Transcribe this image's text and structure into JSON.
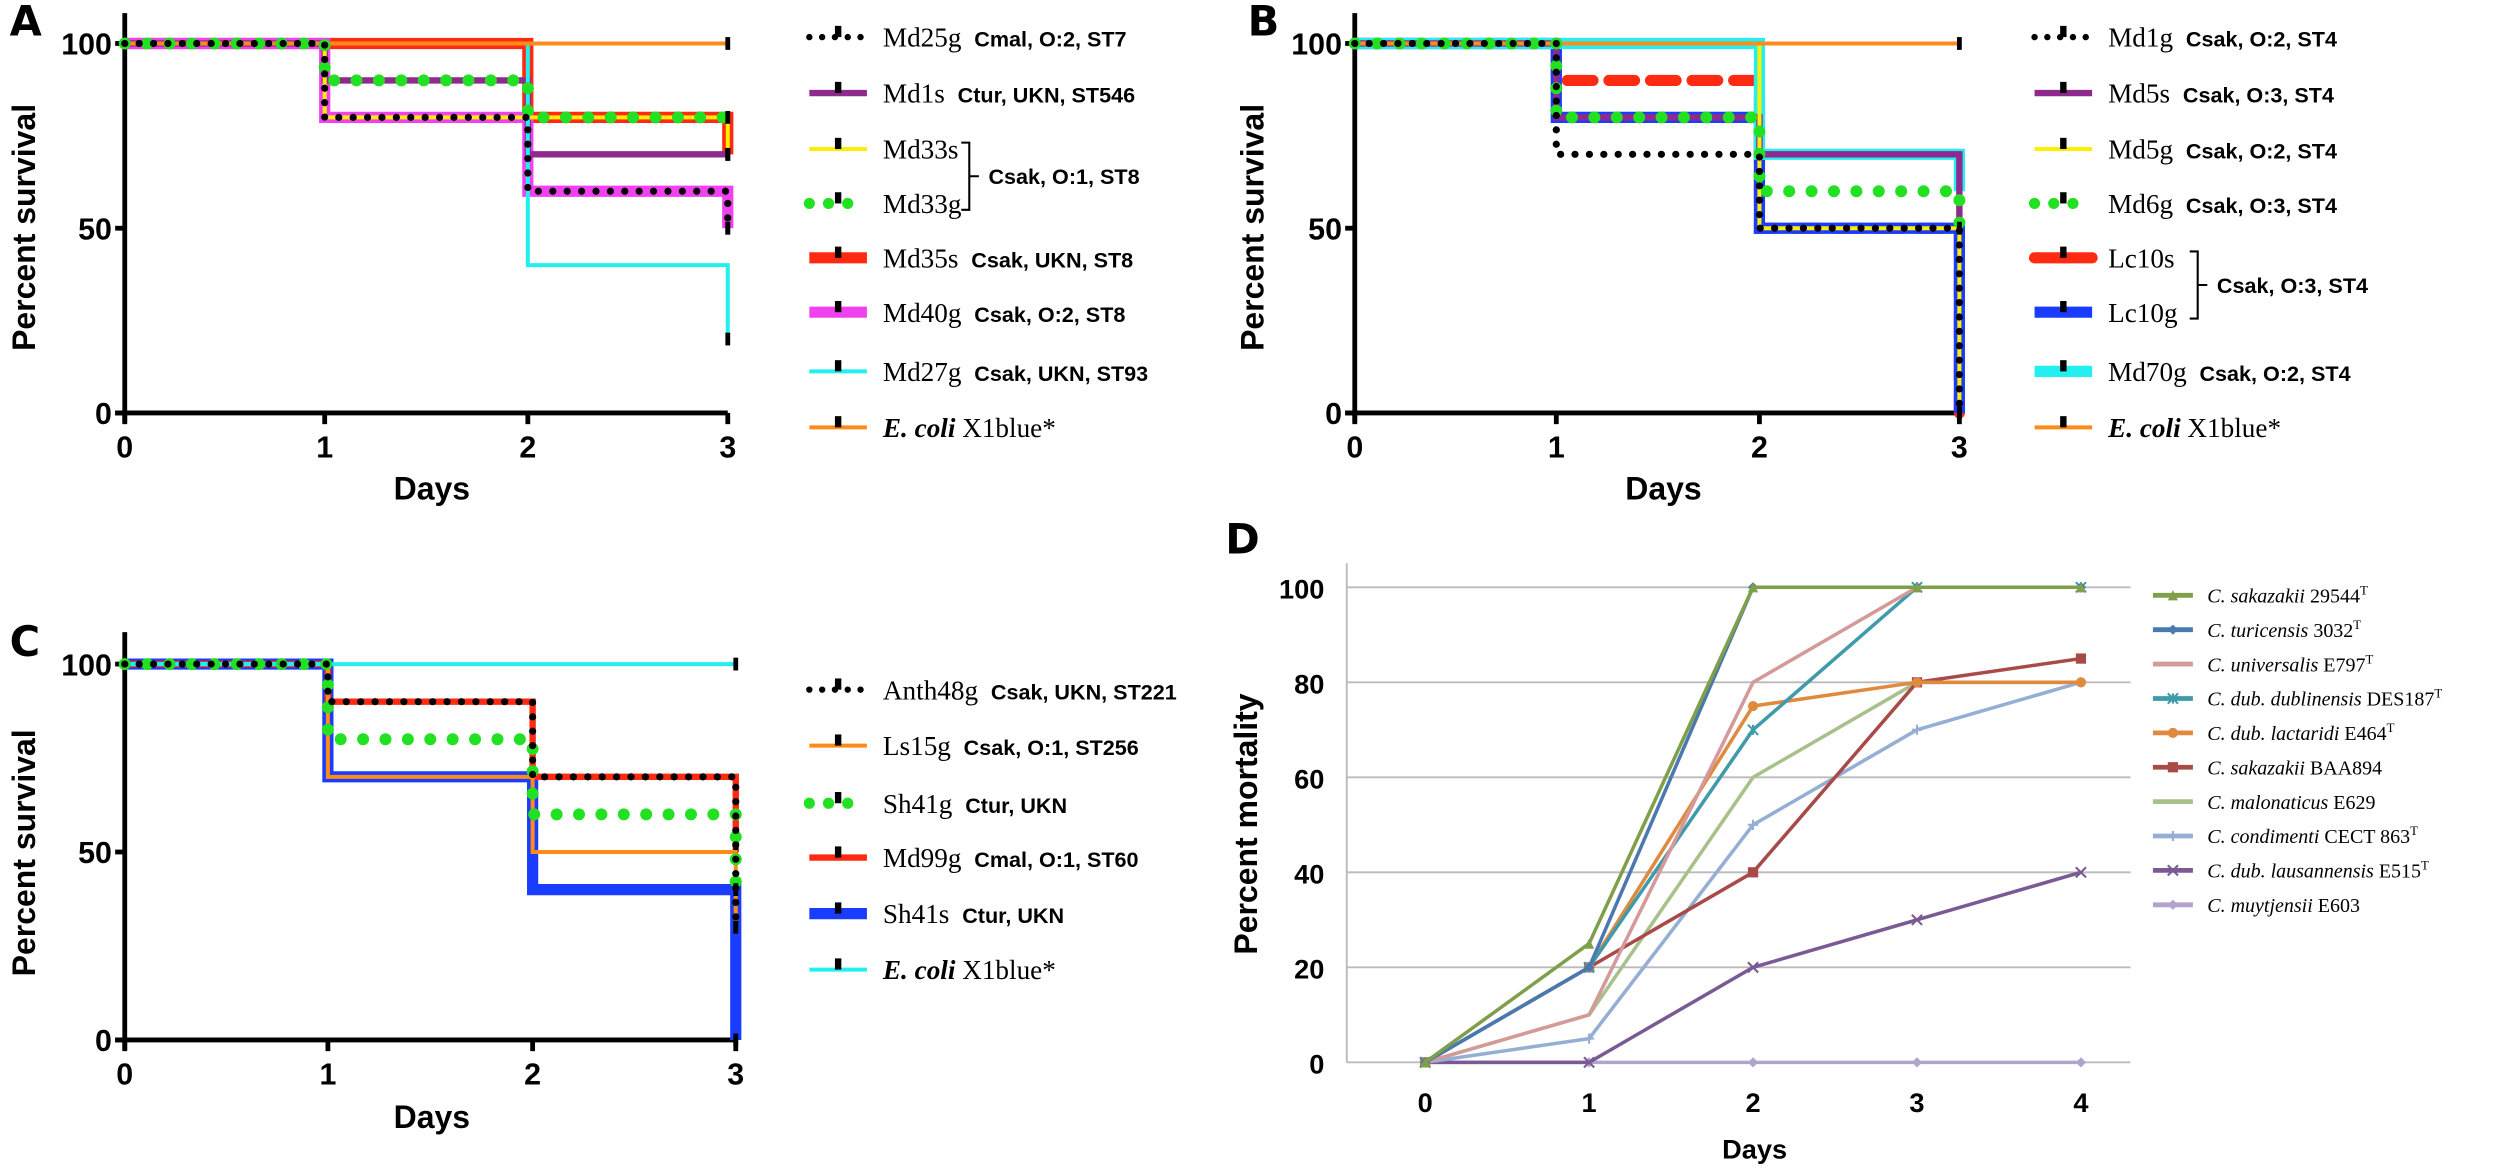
{
  "chart_data": [
    {
      "panel": "A",
      "type": "line",
      "subtype": "kaplan-meier step",
      "xlabel": "Days",
      "ylabel": "Percent survival",
      "x": [
        0,
        1,
        2,
        3
      ],
      "xticks": [
        "0",
        "1",
        "2",
        "3"
      ],
      "yticks": [
        "0",
        "50",
        "100"
      ],
      "xlim": [
        0,
        3
      ],
      "ylim": [
        0,
        100
      ],
      "legend_position": "right",
      "series": [
        {
          "name": "Md25g",
          "desc": "Cmal, O:2, ST7",
          "values": [
            100,
            80,
            60,
            50
          ],
          "color": "#000000",
          "line_style": "dotted",
          "weight": "thin"
        },
        {
          "name": "Md1s",
          "desc": "Ctur, UKN, ST546",
          "values": [
            100,
            90,
            70,
            70
          ],
          "color": "#8e2a8e",
          "line_style": "solid",
          "weight": "medium"
        },
        {
          "name": "Md33s",
          "desc": "",
          "values": [
            100,
            80,
            80,
            70
          ],
          "color": "#ffee00",
          "line_style": "solid",
          "weight": "thin"
        },
        {
          "name": "Md33g",
          "desc": "",
          "values": [
            100,
            90,
            80,
            80
          ],
          "color": "#22e022",
          "line_style": "dotted",
          "weight": "medium"
        },
        {
          "name": "Md35s",
          "desc": "Csak, UKN, ST8",
          "values": [
            100,
            100,
            80,
            70
          ],
          "color": "#ff2a12",
          "line_style": "solid",
          "weight": "thick"
        },
        {
          "name": "Md40g",
          "desc": "Csak, O:2, ST8",
          "values": [
            100,
            80,
            60,
            50
          ],
          "color": "#f040f0",
          "line_style": "solid",
          "weight": "thick"
        },
        {
          "name": "Md27g",
          "desc": "Csak, UKN, ST93",
          "values": [
            100,
            100,
            40,
            20
          ],
          "color": "#22f0f0",
          "line_style": "solid",
          "weight": "thin"
        },
        {
          "name_italic": "E. coli",
          "name": " X1blue*",
          "desc": "",
          "values": [
            100,
            100,
            100,
            100
          ],
          "color": "#ff8c1a",
          "line_style": "solid",
          "weight": "thin"
        }
      ],
      "group_label": "Csak, O:1, ST8"
    },
    {
      "panel": "B",
      "type": "line",
      "subtype": "kaplan-meier step",
      "xlabel": "Days",
      "ylabel": "Percent survival",
      "x": [
        0,
        1,
        2,
        3
      ],
      "xticks": [
        "0",
        "1",
        "2",
        "3"
      ],
      "yticks": [
        "0",
        "50",
        "100"
      ],
      "xlim": [
        0,
        3
      ],
      "ylim": [
        0,
        100
      ],
      "legend_position": "right",
      "series": [
        {
          "name": "Md1g",
          "desc": "Csak, O:2, ST4",
          "values": [
            100,
            70,
            50,
            0
          ],
          "color": "#000000",
          "line_style": "dotted",
          "weight": "thin"
        },
        {
          "name": "Md5s",
          "desc": "Csak, O:3, ST4",
          "values": [
            100,
            80,
            70,
            50
          ],
          "color": "#8e2a8e",
          "line_style": "solid",
          "weight": "medium"
        },
        {
          "name": "Md5g",
          "desc": "Csak, O:2, ST4",
          "values": [
            100,
            100,
            50,
            0
          ],
          "color": "#ffee00",
          "line_style": "solid",
          "weight": "thin"
        },
        {
          "name": "Md6g",
          "desc": "Csak, O:3, ST4",
          "values": [
            100,
            80,
            60,
            50
          ],
          "color": "#22e022",
          "line_style": "dotted",
          "weight": "medium"
        },
        {
          "name": "Lc10s",
          "desc": "",
          "values": [
            100,
            90,
            50,
            0
          ],
          "color": "#ff2a12",
          "line_style": "dashed",
          "weight": "thick"
        },
        {
          "name": "Lc10g",
          "desc": "",
          "values": [
            100,
            80,
            50,
            0
          ],
          "color": "#1a3cff",
          "line_style": "solid",
          "weight": "thick"
        },
        {
          "name": "Md70g",
          "desc": "Csak, O:2, ST4",
          "values": [
            100,
            100,
            70,
            60
          ],
          "color": "#22f0f0",
          "line_style": "solid",
          "weight": "thick"
        },
        {
          "name_italic": "E. coli",
          "name": " X1blue*",
          "desc": "",
          "values": [
            100,
            100,
            100,
            100
          ],
          "color": "#ff8c1a",
          "line_style": "solid",
          "weight": "thin"
        }
      ],
      "group_label": "Csak, O:3, ST4"
    },
    {
      "panel": "C",
      "type": "line",
      "subtype": "kaplan-meier step",
      "xlabel": "Days",
      "ylabel": "Percent survival",
      "x": [
        0,
        1,
        2,
        3
      ],
      "xticks": [
        "0",
        "1",
        "2",
        "3"
      ],
      "yticks": [
        "0",
        "50",
        "100"
      ],
      "xlim": [
        0,
        3
      ],
      "ylim": [
        0,
        100
      ],
      "legend_position": "right",
      "series": [
        {
          "name": "Anth48g",
          "desc": "Csak, UKN, ST221",
          "values": [
            100,
            90,
            70,
            30
          ],
          "color": "#000000",
          "line_style": "dotted",
          "weight": "thin"
        },
        {
          "name": "Ls15g",
          "desc": "Csak, O:1, ST256",
          "values": [
            100,
            70,
            50,
            30
          ],
          "color": "#ff8c1a",
          "line_style": "solid",
          "weight": "thin"
        },
        {
          "name": "Sh41g",
          "desc": "Ctur, UKN",
          "values": [
            100,
            80,
            60,
            40
          ],
          "color": "#22e022",
          "line_style": "dotted",
          "weight": "medium"
        },
        {
          "name": "Md99g",
          "desc": "Cmal, O:1, ST60",
          "values": [
            100,
            90,
            70,
            50
          ],
          "color": "#ff2a12",
          "line_style": "solid",
          "weight": "medium"
        },
        {
          "name": "Sh41s",
          "desc": "Ctur, UKN",
          "values": [
            100,
            70,
            40,
            0
          ],
          "color": "#1a3cff",
          "line_style": "solid",
          "weight": "thick"
        },
        {
          "name_italic": "E. coli",
          "name": " X1blue*",
          "desc": "",
          "values": [
            100,
            100,
            100,
            100
          ],
          "color": "#22f0f0",
          "line_style": "solid",
          "weight": "thin"
        }
      ]
    },
    {
      "panel": "D",
      "type": "line",
      "xlabel": "Days",
      "ylabel": "Percent mortality",
      "x": [
        0,
        1,
        2,
        3,
        4
      ],
      "xticks": [
        "0",
        "1",
        "2",
        "3",
        "4"
      ],
      "yticks": [
        "0",
        "20",
        "40",
        "60",
        "80",
        "100"
      ],
      "xlim": [
        0,
        4
      ],
      "ylim": [
        0,
        100
      ],
      "grid": true,
      "legend_position": "right",
      "series": [
        {
          "species": "C. sakazakii",
          "strain": " 29544",
          "sup": "T",
          "values": [
            0,
            25,
            100,
            100,
            100
          ],
          "color": "#7f9f4a",
          "marker": "triangle"
        },
        {
          "species": "C. turicensis",
          "strain": " 3032",
          "sup": "T",
          "values": [
            0,
            20,
            100,
            100,
            100
          ],
          "color": "#4a78b0",
          "marker": "diamond"
        },
        {
          "species": "C. universalis",
          "strain": " E797",
          "sup": "T",
          "values": [
            0,
            10,
            80,
            100,
            100
          ],
          "color": "#d49a9a",
          "marker": "none"
        },
        {
          "species": "C. dub. dublinensis",
          "strain": " DES187",
          "sup": "T",
          "values": [
            0,
            20,
            70,
            100,
            100
          ],
          "color": "#3f9aaa",
          "marker": "asterisk"
        },
        {
          "species": "C. dub. lactaridi",
          "strain": " E464",
          "sup": "T",
          "values": [
            0,
            20,
            75,
            80,
            80
          ],
          "color": "#e08a40",
          "marker": "circle"
        },
        {
          "species": "C. sakazakii",
          "strain": " BAA894",
          "sup": "",
          "values": [
            0,
            20,
            40,
            80,
            85
          ],
          "color": "#a84a48",
          "marker": "square"
        },
        {
          "species": "C. malonaticus",
          "strain": " E629",
          "sup": "",
          "values": [
            0,
            10,
            60,
            80,
            80
          ],
          "color": "#a8c08a",
          "marker": "none"
        },
        {
          "species": "C. condimenti",
          "strain": " CECT 863",
          "sup": "T",
          "values": [
            0,
            5,
            50,
            70,
            80
          ],
          "color": "#94aed4",
          "marker": "plus"
        },
        {
          "species": "C. dub. lausannensis",
          "strain": " E515",
          "sup": "T",
          "values": [
            0,
            0,
            20,
            30,
            40
          ],
          "color": "#7a5a92",
          "marker": "x"
        },
        {
          "species": "C. muytjensii",
          "strain": " E603",
          "sup": "",
          "values": [
            0,
            0,
            0,
            0,
            0
          ],
          "color": "#b0a4cc",
          "marker": "diamond"
        }
      ]
    }
  ]
}
